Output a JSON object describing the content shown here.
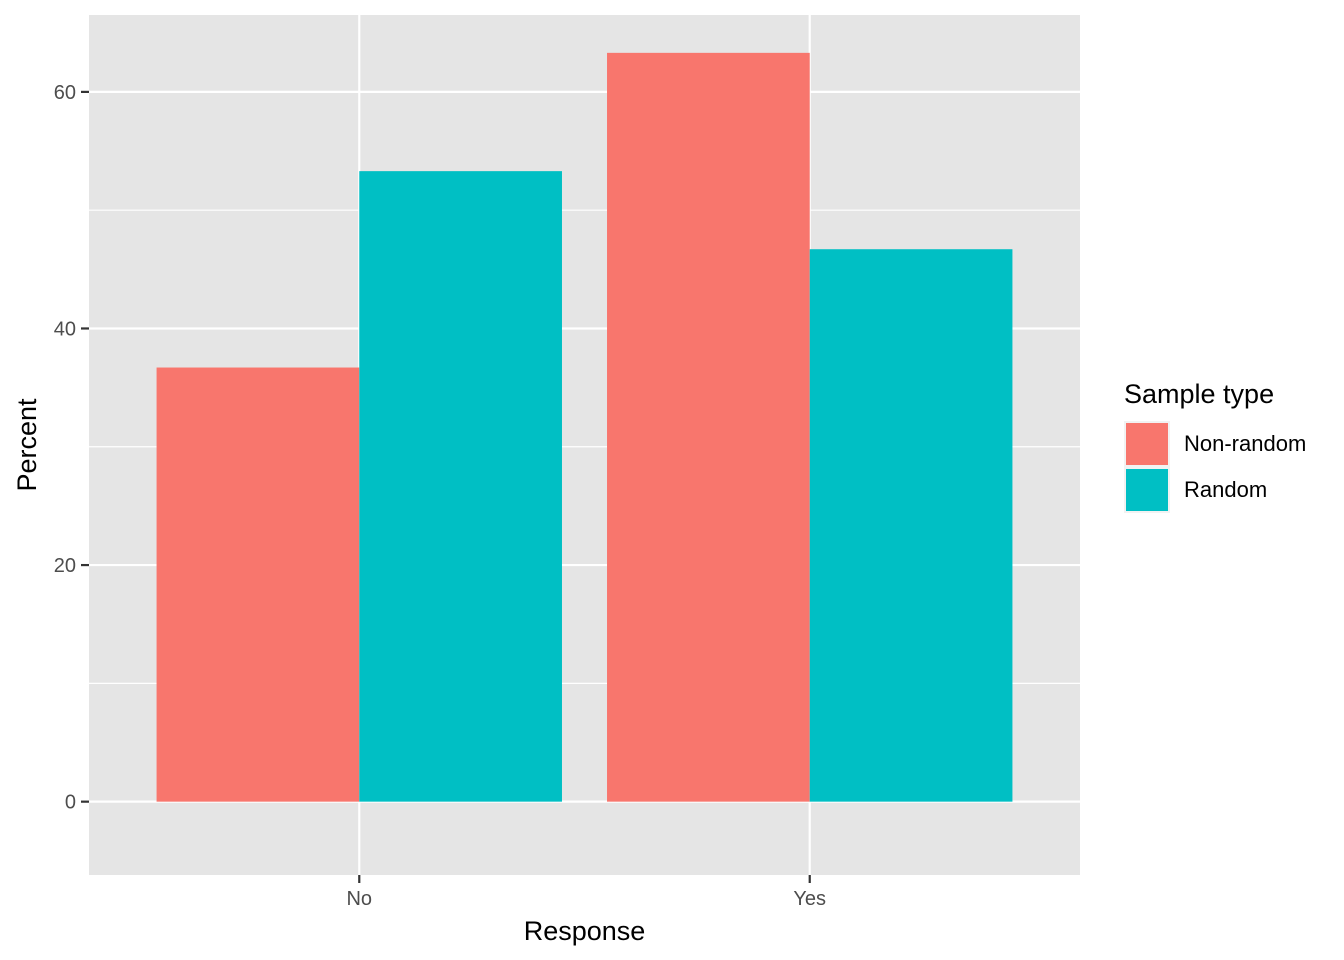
{
  "chart_data": {
    "type": "bar",
    "title": "",
    "xlabel": "Response",
    "ylabel": "Percent",
    "categories": [
      "No",
      "Yes"
    ],
    "series": [
      {
        "name": "Non-random",
        "color": "#F8766D",
        "values": [
          36.7,
          63.3
        ]
      },
      {
        "name": "Random",
        "color": "#00BFC4",
        "values": [
          53.3,
          46.7
        ]
      }
    ],
    "ylim": [
      -6.2,
      66.5
    ],
    "y_ticks": [
      0,
      20,
      40,
      60
    ],
    "grid": true,
    "legend": {
      "title": "Sample type",
      "position": "right"
    }
  }
}
